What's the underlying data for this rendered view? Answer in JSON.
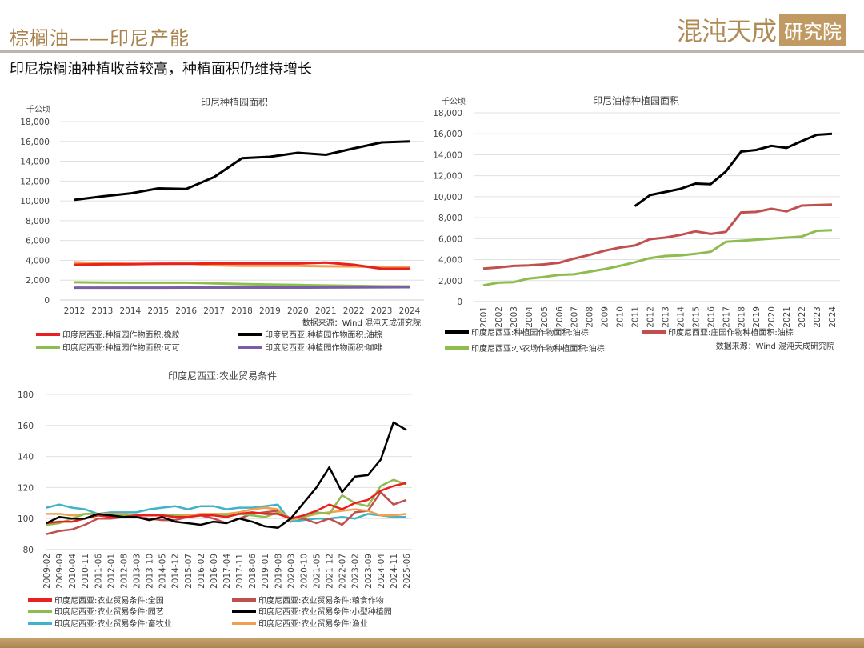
{
  "header": {
    "title": "棕榈油——印尼产能",
    "logo_text": "混沌天成",
    "logo_box": "研究院",
    "subtitle": "印尼棕榈油种植收益较高，种植面积仍维持增长"
  },
  "colors": {
    "accent": "#a8834b",
    "band": "#b5935e"
  },
  "chart_data": [
    {
      "type": "line",
      "title": "印尼种植园面积",
      "ylabel": "千公顷",
      "source": "数据来源：Wind 混沌天成研究院",
      "ylim": [
        0,
        18000
      ],
      "yticks": [
        0,
        2000,
        4000,
        6000,
        8000,
        10000,
        12000,
        14000,
        16000,
        18000
      ],
      "grid": true,
      "legend": "bottom",
      "x": [
        "2012",
        "2013",
        "2014",
        "2015",
        "2016",
        "2017",
        "2018",
        "2019",
        "2020",
        "2021",
        "2022",
        "2023",
        "2024"
      ],
      "series": [
        {
          "name": "",
          "color": "#f0a050",
          "values": [
            3800,
            3700,
            3650,
            3650,
            3700,
            3500,
            3450,
            3450,
            3450,
            3400,
            3380,
            3350,
            3350
          ]
        },
        {
          "name": "印度尼西亚:种植园作物面积:橡胶",
          "color": "#e8201e",
          "values": [
            3550,
            3600,
            3620,
            3650,
            3650,
            3680,
            3680,
            3680,
            3680,
            3780,
            3550,
            3150,
            3150
          ]
        },
        {
          "name": "印度尼西亚:种植园作物面积:油棕",
          "color": "#000000",
          "values": [
            10100,
            10450,
            10750,
            11260,
            11200,
            12400,
            14300,
            14450,
            14850,
            14650,
            15300,
            15900,
            16000
          ]
        },
        {
          "name": "印度尼西亚:种植园作物面积:可可",
          "color": "#8fbc4f",
          "values": [
            1780,
            1750,
            1740,
            1740,
            1740,
            1680,
            1610,
            1550,
            1510,
            1460,
            1420,
            1380,
            1370
          ]
        },
        {
          "name": "印度尼西亚:种植园作物面积:咖啡",
          "color": "#7a5ea8",
          "values": [
            1240,
            1240,
            1240,
            1240,
            1250,
            1250,
            1250,
            1250,
            1250,
            1260,
            1270,
            1280,
            1290
          ]
        }
      ]
    },
    {
      "type": "line",
      "title": "印尼油棕种植园面积",
      "ylabel": "千公顷",
      "source": "数据来源：Wind  混沌天成研究院",
      "ylim": [
        0,
        18000
      ],
      "yticks": [
        0,
        2000,
        4000,
        6000,
        8000,
        10000,
        12000,
        14000,
        16000,
        18000
      ],
      "grid": true,
      "legend": "bottom",
      "x": [
        "2001",
        "2002",
        "2003",
        "2004",
        "2005",
        "2006",
        "2007",
        "2008",
        "2009",
        "2010",
        "2011",
        "2012",
        "2013",
        "2014",
        "2015",
        "2016",
        "2017",
        "2018",
        "2019",
        "2020",
        "2021",
        "2022",
        "2023",
        "2024"
      ],
      "series": [
        {
          "name": "印度尼西亚:种植园作物面积:油棕",
          "color": "#000000",
          "values": [
            null,
            null,
            null,
            null,
            null,
            null,
            null,
            null,
            null,
            null,
            9100,
            10150,
            10450,
            10750,
            11250,
            11200,
            12400,
            14300,
            14450,
            14850,
            14650,
            15300,
            15900,
            16000
          ]
        },
        {
          "name": "印度尼西亚:庄园作物种植面积:油棕",
          "color": "#c0504d",
          "values": [
            3150,
            3250,
            3400,
            3450,
            3550,
            3700,
            4100,
            4450,
            4850,
            5150,
            5350,
            5950,
            6100,
            6350,
            6700,
            6450,
            6650,
            8500,
            8550,
            8850,
            8600,
            9150,
            9200,
            9250
          ]
        },
        {
          "name": "印度尼西亚:小农场作物种植面积:油棕",
          "color": "#8fbc4f",
          "values": [
            1550,
            1800,
            1850,
            2200,
            2350,
            2550,
            2600,
            2850,
            3100,
            3400,
            3750,
            4150,
            4350,
            4400,
            4550,
            4750,
            5700,
            5800,
            5900,
            6000,
            6100,
            6200,
            6750,
            6800
          ]
        }
      ]
    },
    {
      "type": "line",
      "title": "印度尼西亚:农业贸易条件",
      "ylim": [
        80,
        180
      ],
      "yticks": [
        80,
        100,
        120,
        140,
        160,
        180
      ],
      "grid": true,
      "legend": "bottom",
      "x": [
        "2009-02",
        "2009-09",
        "2010-04",
        "2010-11",
        "2011-06",
        "2012-01",
        "2012-08",
        "2013-03",
        "2013-10",
        "2014-05",
        "2014-12",
        "2015-07",
        "2016-02",
        "2016-09",
        "2017-04",
        "2017-11",
        "2018-06",
        "2019-01",
        "2019-08",
        "2020-03",
        "2020-10",
        "2021-05",
        "2021-12",
        "2022-07",
        "2023-02",
        "2023-09",
        "2024-04",
        "2024-11",
        "2025-06"
      ],
      "series": [
        {
          "name": "印度尼西亚:农业贸易条件:畜牧业",
          "color": "#3fb3c7",
          "values": [
            107,
            109,
            107,
            106,
            103,
            104,
            104,
            104,
            106,
            107,
            108,
            106,
            108,
            108,
            106,
            107,
            107,
            108,
            109,
            98,
            99,
            100,
            100,
            101,
            100,
            103,
            102,
            101,
            101
          ]
        },
        {
          "name": "印度尼西亚:农业贸易条件:粮食作物",
          "color": "#c0504d",
          "values": [
            90,
            92,
            93,
            96,
            100,
            100,
            101,
            101,
            100,
            99,
            99,
            101,
            102,
            100,
            97,
            100,
            103,
            104,
            105,
            100,
            100,
            97,
            100,
            96,
            104,
            105,
            117,
            109,
            112
          ]
        },
        {
          "name": "印度尼西亚:农业贸易条件:渔业",
          "color": "#f0a050",
          "values": [
            103,
            103,
            102,
            103,
            103,
            103,
            103,
            102,
            102,
            102,
            102,
            102,
            103,
            103,
            103,
            104,
            106,
            107,
            106,
            99,
            101,
            103,
            104,
            105,
            106,
            105,
            102,
            102,
            103
          ]
        },
        {
          "name": "印度尼西亚:农业贸易条件:园艺",
          "color": "#8fbc4f",
          "values": [
            96,
            97,
            100,
            103,
            103,
            102,
            102,
            102,
            102,
            102,
            102,
            101,
            102,
            102,
            102,
            103,
            102,
            101,
            104,
            100,
            101,
            104,
            103,
            115,
            110,
            108,
            121,
            125,
            122
          ]
        },
        {
          "name": "印度尼西亚:农业贸易条件:全国",
          "color": "#e8201e",
          "values": [
            97,
            98,
            98,
            100,
            102,
            101,
            101,
            102,
            102,
            102,
            101,
            101,
            102,
            102,
            101,
            103,
            104,
            103,
            103,
            100,
            102,
            105,
            109,
            106,
            110,
            112,
            118,
            121,
            123
          ]
        },
        {
          "name": "印度尼西亚:农业贸易条件:小型种植园",
          "color": "#000000",
          "values": [
            97,
            101,
            100,
            100,
            103,
            102,
            101,
            101,
            99,
            101,
            98,
            97,
            96,
            98,
            97,
            100,
            98,
            95,
            94,
            100,
            110,
            120,
            133,
            117,
            127,
            128,
            138,
            162,
            157
          ]
        }
      ],
      "legend_order": [
        4,
        1,
        3,
        5,
        0,
        2
      ]
    }
  ]
}
